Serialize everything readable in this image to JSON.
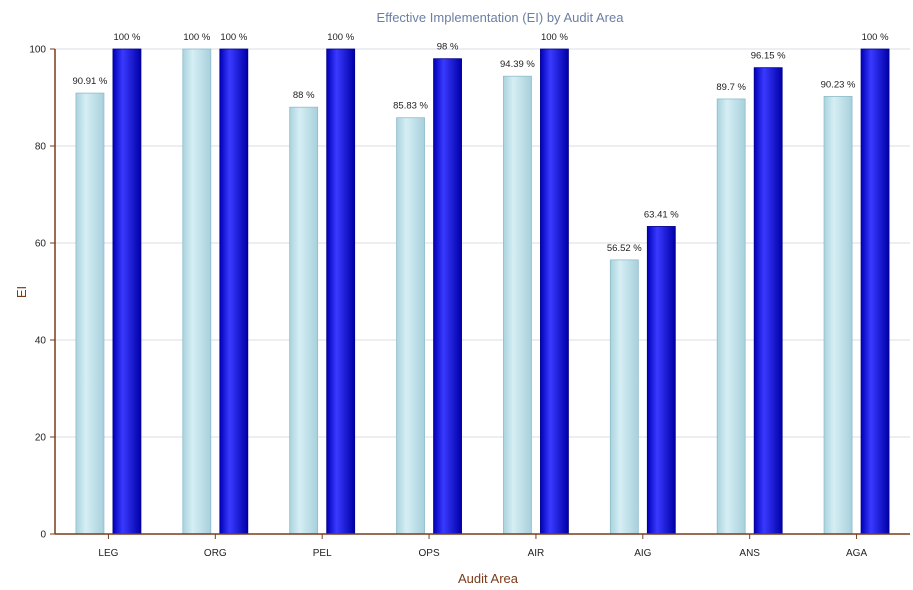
{
  "chart_data": {
    "type": "bar",
    "title": "Effective Implementation (EI) by Audit Area",
    "xlabel": "Audit Area",
    "ylabel": "EI",
    "ylim": [
      0,
      100
    ],
    "yticks": [
      0,
      20,
      40,
      60,
      80,
      100
    ],
    "categories": [
      "LEG",
      "ORG",
      "PEL",
      "OPS",
      "AIR",
      "AIG",
      "ANS",
      "AGA"
    ],
    "series": [
      {
        "values": [
          90.91,
          100,
          88,
          85.83,
          94.39,
          56.52,
          89.7,
          90.23
        ],
        "labels": [
          "90.91 %",
          "100 %",
          "88 %",
          "85.83 %",
          "94.39 %",
          "56.52 %",
          "89.7 %",
          "90.23 %"
        ],
        "color": "#b9dfe8",
        "edge": "#8fbccb"
      },
      {
        "values": [
          100,
          100,
          100,
          98,
          100,
          63.41,
          96.15,
          100
        ],
        "labels": [
          "100 %",
          "100 %",
          "100 %",
          "98 %",
          "100 %",
          "63.41 %",
          "96.15 %",
          "100 %"
        ],
        "color": "#1010ee",
        "edge": "#00008b"
      }
    ],
    "grid": true,
    "legend": "none"
  }
}
